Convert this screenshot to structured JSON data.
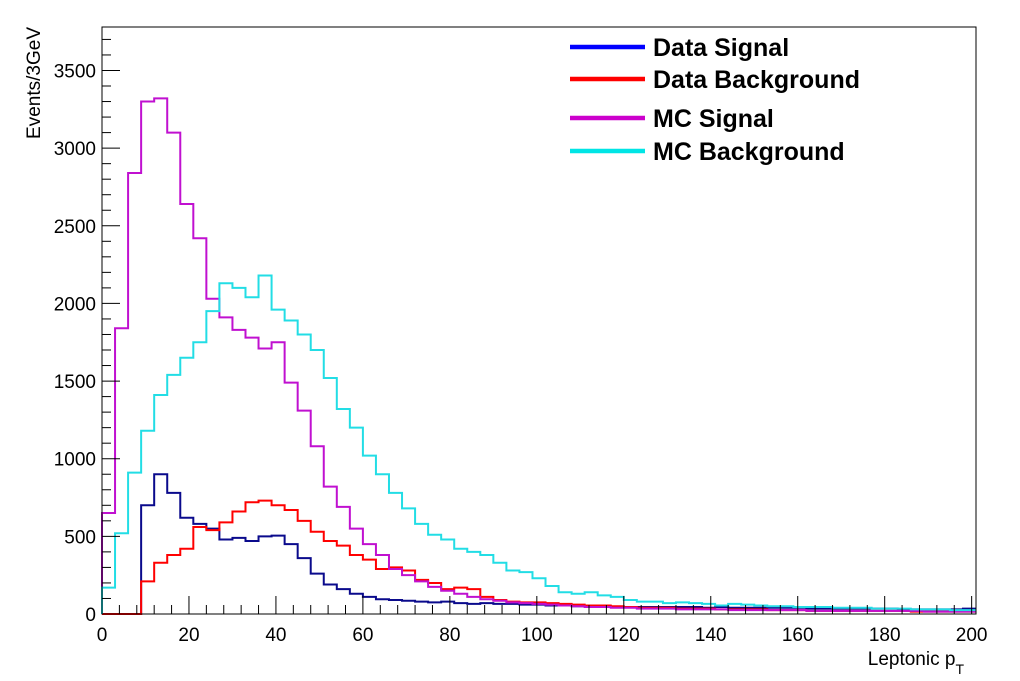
{
  "chart_data": {
    "type": "line",
    "subtype": "step-histogram",
    "xlabel": "Leptonic p",
    "xlabel_subscript": "T",
    "ylabel": "Events/3GeV",
    "xlim": [
      0,
      201
    ],
    "ylim": [
      0,
      3780
    ],
    "bin_width": 3,
    "x_ticks": [
      0,
      20,
      40,
      60,
      80,
      100,
      120,
      140,
      160,
      180,
      200
    ],
    "y_ticks": [
      0,
      500,
      1000,
      1500,
      2000,
      2500,
      3000,
      3500
    ],
    "legend_position": "top-right",
    "grid": false,
    "series": [
      {
        "name": "Data Signal",
        "legend_color": "#0000ff",
        "color": "#0a0a8c",
        "values": [
          0,
          0,
          0,
          700,
          900,
          780,
          620,
          580,
          550,
          480,
          490,
          470,
          500,
          505,
          450,
          360,
          260,
          190,
          160,
          130,
          110,
          95,
          90,
          85,
          80,
          75,
          80,
          70,
          65,
          70,
          65,
          65,
          60,
          60,
          55,
          55,
          50,
          50,
          50,
          45,
          45,
          45,
          45,
          45,
          45,
          45,
          40,
          45,
          40,
          40,
          40,
          40,
          40,
          40,
          35,
          35,
          35,
          35,
          35,
          35,
          35,
          30,
          30,
          30,
          30,
          30,
          35
        ]
      },
      {
        "name": "Data Background",
        "legend_color": "#ff0000",
        "color": "#ff0000",
        "values": [
          0,
          0,
          0,
          210,
          330,
          380,
          420,
          560,
          540,
          590,
          660,
          720,
          730,
          700,
          670,
          600,
          530,
          470,
          440,
          380,
          350,
          290,
          300,
          280,
          220,
          200,
          160,
          170,
          160,
          110,
          90,
          80,
          75,
          75,
          70,
          65,
          60,
          55,
          55,
          50,
          45,
          40,
          40,
          40,
          35,
          35,
          35,
          30,
          30,
          30,
          30,
          25,
          25,
          25,
          20,
          20,
          20,
          20,
          20,
          20,
          20,
          20,
          15,
          15,
          15,
          15,
          15
        ]
      },
      {
        "name": "MC Signal",
        "legend_color": "#cc00cc",
        "color": "#c010d0",
        "values": [
          650,
          1840,
          2840,
          3300,
          3320,
          3100,
          2640,
          2420,
          2030,
          1910,
          1830,
          1780,
          1710,
          1750,
          1490,
          1310,
          1080,
          820,
          690,
          550,
          450,
          380,
          290,
          250,
          210,
          175,
          150,
          130,
          110,
          95,
          85,
          75,
          70,
          65,
          60,
          55,
          50,
          45,
          45,
          40,
          40,
          35,
          35,
          35,
          30,
          30,
          30,
          30,
          25,
          25,
          25,
          25,
          25,
          25,
          20,
          20,
          20,
          20,
          20,
          20,
          20,
          20,
          20,
          15,
          15,
          15,
          15
        ]
      },
      {
        "name": "MC Background",
        "legend_color": "#00e5e5",
        "color": "#22dde5",
        "values": [
          170,
          520,
          910,
          1180,
          1410,
          1540,
          1650,
          1750,
          1950,
          2130,
          2100,
          2040,
          2180,
          1960,
          1890,
          1800,
          1700,
          1520,
          1320,
          1200,
          1020,
          900,
          780,
          680,
          580,
          510,
          480,
          420,
          400,
          380,
          330,
          280,
          270,
          230,
          180,
          140,
          130,
          140,
          120,
          110,
          90,
          80,
          80,
          70,
          75,
          70,
          65,
          55,
          65,
          60,
          55,
          50,
          50,
          45,
          45,
          45,
          40,
          40,
          40,
          35,
          35,
          35,
          30,
          30,
          30,
          25,
          25
        ]
      }
    ]
  }
}
